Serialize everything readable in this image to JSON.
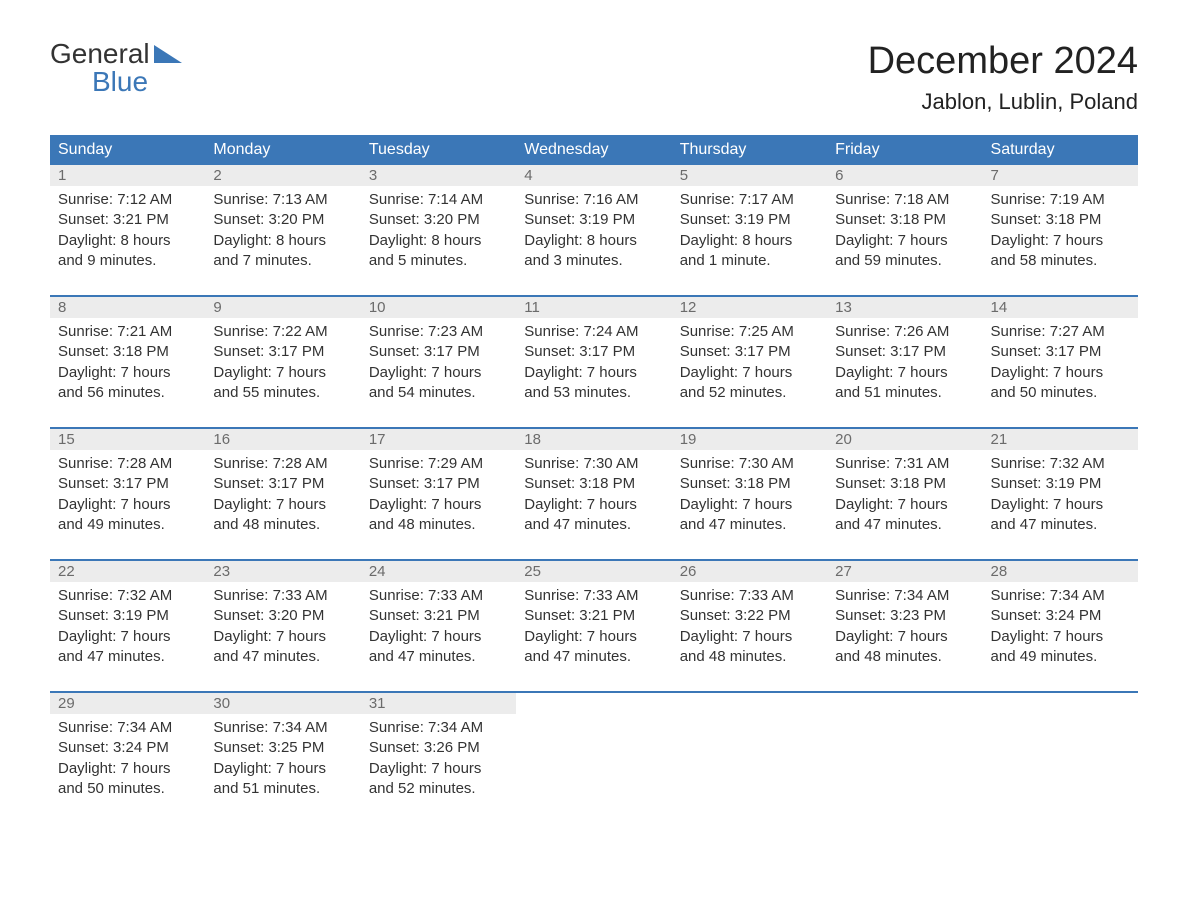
{
  "logo": {
    "line1": "General",
    "line2": "Blue"
  },
  "title": "December 2024",
  "location": "Jablon, Lublin, Poland",
  "colors": {
    "header_bg": "#3b77b7",
    "header_text": "#ffffff",
    "daynum_bg": "#ececec",
    "daynum_text": "#6b6b6b",
    "body_text": "#333333",
    "rule": "#3b77b7",
    "page_bg": "#ffffff"
  },
  "typography": {
    "title_fontsize": 38,
    "location_fontsize": 22,
    "dow_fontsize": 16,
    "cell_fontsize": 15
  },
  "days_of_week": [
    "Sunday",
    "Monday",
    "Tuesday",
    "Wednesday",
    "Thursday",
    "Friday",
    "Saturday"
  ],
  "weeks": [
    [
      {
        "num": "1",
        "sunrise": "Sunrise: 7:12 AM",
        "sunset": "Sunset: 3:21 PM",
        "daylight1": "Daylight: 8 hours",
        "daylight2": "and 9 minutes."
      },
      {
        "num": "2",
        "sunrise": "Sunrise: 7:13 AM",
        "sunset": "Sunset: 3:20 PM",
        "daylight1": "Daylight: 8 hours",
        "daylight2": "and 7 minutes."
      },
      {
        "num": "3",
        "sunrise": "Sunrise: 7:14 AM",
        "sunset": "Sunset: 3:20 PM",
        "daylight1": "Daylight: 8 hours",
        "daylight2": "and 5 minutes."
      },
      {
        "num": "4",
        "sunrise": "Sunrise: 7:16 AM",
        "sunset": "Sunset: 3:19 PM",
        "daylight1": "Daylight: 8 hours",
        "daylight2": "and 3 minutes."
      },
      {
        "num": "5",
        "sunrise": "Sunrise: 7:17 AM",
        "sunset": "Sunset: 3:19 PM",
        "daylight1": "Daylight: 8 hours",
        "daylight2": "and 1 minute."
      },
      {
        "num": "6",
        "sunrise": "Sunrise: 7:18 AM",
        "sunset": "Sunset: 3:18 PM",
        "daylight1": "Daylight: 7 hours",
        "daylight2": "and 59 minutes."
      },
      {
        "num": "7",
        "sunrise": "Sunrise: 7:19 AM",
        "sunset": "Sunset: 3:18 PM",
        "daylight1": "Daylight: 7 hours",
        "daylight2": "and 58 minutes."
      }
    ],
    [
      {
        "num": "8",
        "sunrise": "Sunrise: 7:21 AM",
        "sunset": "Sunset: 3:18 PM",
        "daylight1": "Daylight: 7 hours",
        "daylight2": "and 56 minutes."
      },
      {
        "num": "9",
        "sunrise": "Sunrise: 7:22 AM",
        "sunset": "Sunset: 3:17 PM",
        "daylight1": "Daylight: 7 hours",
        "daylight2": "and 55 minutes."
      },
      {
        "num": "10",
        "sunrise": "Sunrise: 7:23 AM",
        "sunset": "Sunset: 3:17 PM",
        "daylight1": "Daylight: 7 hours",
        "daylight2": "and 54 minutes."
      },
      {
        "num": "11",
        "sunrise": "Sunrise: 7:24 AM",
        "sunset": "Sunset: 3:17 PM",
        "daylight1": "Daylight: 7 hours",
        "daylight2": "and 53 minutes."
      },
      {
        "num": "12",
        "sunrise": "Sunrise: 7:25 AM",
        "sunset": "Sunset: 3:17 PM",
        "daylight1": "Daylight: 7 hours",
        "daylight2": "and 52 minutes."
      },
      {
        "num": "13",
        "sunrise": "Sunrise: 7:26 AM",
        "sunset": "Sunset: 3:17 PM",
        "daylight1": "Daylight: 7 hours",
        "daylight2": "and 51 minutes."
      },
      {
        "num": "14",
        "sunrise": "Sunrise: 7:27 AM",
        "sunset": "Sunset: 3:17 PM",
        "daylight1": "Daylight: 7 hours",
        "daylight2": "and 50 minutes."
      }
    ],
    [
      {
        "num": "15",
        "sunrise": "Sunrise: 7:28 AM",
        "sunset": "Sunset: 3:17 PM",
        "daylight1": "Daylight: 7 hours",
        "daylight2": "and 49 minutes."
      },
      {
        "num": "16",
        "sunrise": "Sunrise: 7:28 AM",
        "sunset": "Sunset: 3:17 PM",
        "daylight1": "Daylight: 7 hours",
        "daylight2": "and 48 minutes."
      },
      {
        "num": "17",
        "sunrise": "Sunrise: 7:29 AM",
        "sunset": "Sunset: 3:17 PM",
        "daylight1": "Daylight: 7 hours",
        "daylight2": "and 48 minutes."
      },
      {
        "num": "18",
        "sunrise": "Sunrise: 7:30 AM",
        "sunset": "Sunset: 3:18 PM",
        "daylight1": "Daylight: 7 hours",
        "daylight2": "and 47 minutes."
      },
      {
        "num": "19",
        "sunrise": "Sunrise: 7:30 AM",
        "sunset": "Sunset: 3:18 PM",
        "daylight1": "Daylight: 7 hours",
        "daylight2": "and 47 minutes."
      },
      {
        "num": "20",
        "sunrise": "Sunrise: 7:31 AM",
        "sunset": "Sunset: 3:18 PM",
        "daylight1": "Daylight: 7 hours",
        "daylight2": "and 47 minutes."
      },
      {
        "num": "21",
        "sunrise": "Sunrise: 7:32 AM",
        "sunset": "Sunset: 3:19 PM",
        "daylight1": "Daylight: 7 hours",
        "daylight2": "and 47 minutes."
      }
    ],
    [
      {
        "num": "22",
        "sunrise": "Sunrise: 7:32 AM",
        "sunset": "Sunset: 3:19 PM",
        "daylight1": "Daylight: 7 hours",
        "daylight2": "and 47 minutes."
      },
      {
        "num": "23",
        "sunrise": "Sunrise: 7:33 AM",
        "sunset": "Sunset: 3:20 PM",
        "daylight1": "Daylight: 7 hours",
        "daylight2": "and 47 minutes."
      },
      {
        "num": "24",
        "sunrise": "Sunrise: 7:33 AM",
        "sunset": "Sunset: 3:21 PM",
        "daylight1": "Daylight: 7 hours",
        "daylight2": "and 47 minutes."
      },
      {
        "num": "25",
        "sunrise": "Sunrise: 7:33 AM",
        "sunset": "Sunset: 3:21 PM",
        "daylight1": "Daylight: 7 hours",
        "daylight2": "and 47 minutes."
      },
      {
        "num": "26",
        "sunrise": "Sunrise: 7:33 AM",
        "sunset": "Sunset: 3:22 PM",
        "daylight1": "Daylight: 7 hours",
        "daylight2": "and 48 minutes."
      },
      {
        "num": "27",
        "sunrise": "Sunrise: 7:34 AM",
        "sunset": "Sunset: 3:23 PM",
        "daylight1": "Daylight: 7 hours",
        "daylight2": "and 48 minutes."
      },
      {
        "num": "28",
        "sunrise": "Sunrise: 7:34 AM",
        "sunset": "Sunset: 3:24 PM",
        "daylight1": "Daylight: 7 hours",
        "daylight2": "and 49 minutes."
      }
    ],
    [
      {
        "num": "29",
        "sunrise": "Sunrise: 7:34 AM",
        "sunset": "Sunset: 3:24 PM",
        "daylight1": "Daylight: 7 hours",
        "daylight2": "and 50 minutes."
      },
      {
        "num": "30",
        "sunrise": "Sunrise: 7:34 AM",
        "sunset": "Sunset: 3:25 PM",
        "daylight1": "Daylight: 7 hours",
        "daylight2": "and 51 minutes."
      },
      {
        "num": "31",
        "sunrise": "Sunrise: 7:34 AM",
        "sunset": "Sunset: 3:26 PM",
        "daylight1": "Daylight: 7 hours",
        "daylight2": "and 52 minutes."
      },
      null,
      null,
      null,
      null
    ]
  ]
}
